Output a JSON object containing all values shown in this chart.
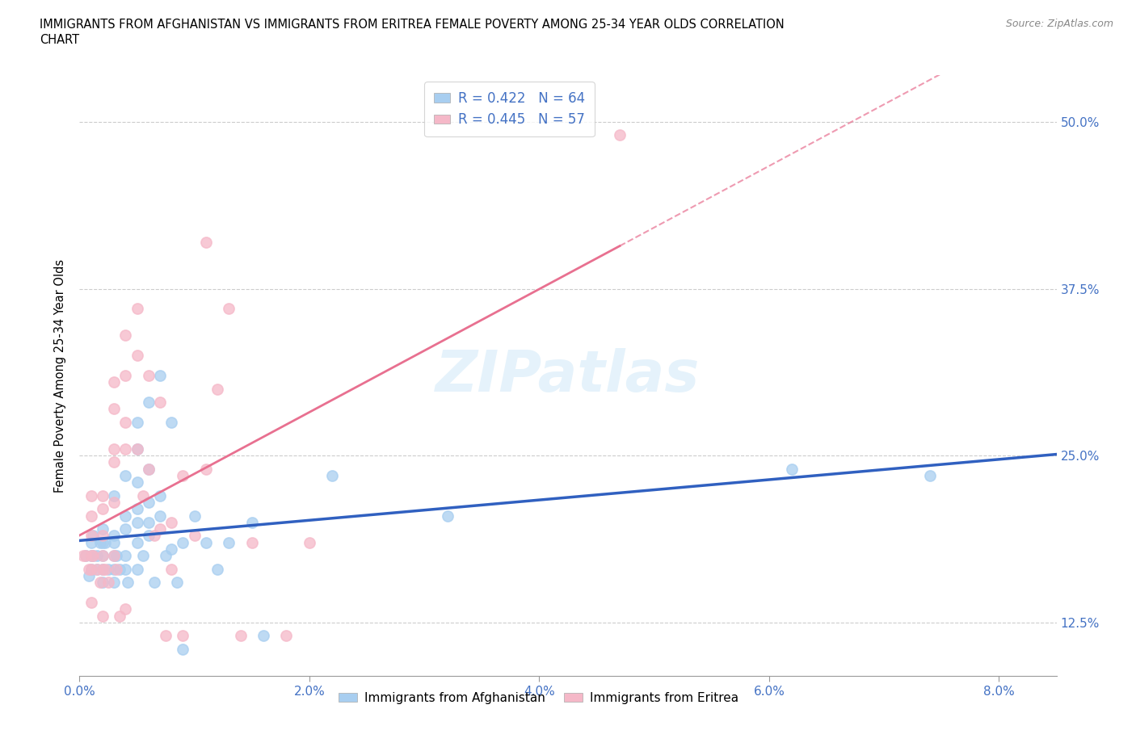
{
  "title_line1": "IMMIGRANTS FROM AFGHANISTAN VS IMMIGRANTS FROM ERITREA FEMALE POVERTY AMONG 25-34 YEAR OLDS CORRELATION",
  "title_line2": "CHART",
  "source": "Source: ZipAtlas.com",
  "ylabel": "Female Poverty Among 25-34 Year Olds",
  "xlim": [
    0.0,
    0.085
  ],
  "ylim": [
    0.085,
    0.535
  ],
  "afghanistan_color": "#a8cef0",
  "eritrea_color": "#f5b8c8",
  "afghanistan_R": 0.422,
  "afghanistan_N": 64,
  "eritrea_R": 0.445,
  "eritrea_N": 57,
  "afghanistan_line_color": "#3060c0",
  "eritrea_line_color": "#e87090",
  "watermark": "ZIPatlas",
  "x_tick_vals": [
    0.0,
    0.02,
    0.04,
    0.06,
    0.08
  ],
  "x_tick_labels": [
    "0.0%",
    "2.0%",
    "4.0%",
    "6.0%",
    "8.0%"
  ],
  "y_tick_vals": [
    0.125,
    0.25,
    0.375,
    0.5
  ],
  "y_tick_labels": [
    "12.5%",
    "25.0%",
    "37.5%",
    "50.0%"
  ],
  "afghanistan_x": [
    0.0005,
    0.0008,
    0.001,
    0.001,
    0.001,
    0.0012,
    0.0012,
    0.0015,
    0.0015,
    0.0018,
    0.002,
    0.002,
    0.002,
    0.002,
    0.002,
    0.0022,
    0.0025,
    0.003,
    0.003,
    0.003,
    0.003,
    0.003,
    0.003,
    0.0032,
    0.0035,
    0.004,
    0.004,
    0.004,
    0.004,
    0.004,
    0.0042,
    0.005,
    0.005,
    0.005,
    0.005,
    0.005,
    0.005,
    0.005,
    0.0055,
    0.006,
    0.006,
    0.006,
    0.006,
    0.006,
    0.0065,
    0.007,
    0.007,
    0.007,
    0.0075,
    0.008,
    0.008,
    0.0085,
    0.009,
    0.009,
    0.01,
    0.011,
    0.012,
    0.013,
    0.015,
    0.016,
    0.022,
    0.032,
    0.062,
    0.074
  ],
  "afghanistan_y": [
    0.175,
    0.16,
    0.185,
    0.175,
    0.165,
    0.19,
    0.175,
    0.175,
    0.165,
    0.185,
    0.195,
    0.185,
    0.175,
    0.165,
    0.155,
    0.185,
    0.165,
    0.22,
    0.19,
    0.185,
    0.175,
    0.165,
    0.155,
    0.175,
    0.165,
    0.235,
    0.205,
    0.195,
    0.175,
    0.165,
    0.155,
    0.275,
    0.255,
    0.23,
    0.21,
    0.2,
    0.185,
    0.165,
    0.175,
    0.29,
    0.24,
    0.215,
    0.2,
    0.19,
    0.155,
    0.31,
    0.22,
    0.205,
    0.175,
    0.275,
    0.18,
    0.155,
    0.185,
    0.105,
    0.205,
    0.185,
    0.165,
    0.185,
    0.2,
    0.115,
    0.235,
    0.205,
    0.24,
    0.235
  ],
  "eritrea_x": [
    0.0003,
    0.0005,
    0.0008,
    0.001,
    0.001,
    0.001,
    0.001,
    0.001,
    0.001,
    0.0012,
    0.0015,
    0.0018,
    0.002,
    0.002,
    0.002,
    0.002,
    0.002,
    0.002,
    0.0022,
    0.0025,
    0.003,
    0.003,
    0.003,
    0.003,
    0.003,
    0.003,
    0.0032,
    0.0035,
    0.004,
    0.004,
    0.004,
    0.004,
    0.004,
    0.005,
    0.005,
    0.005,
    0.0055,
    0.006,
    0.006,
    0.0065,
    0.007,
    0.007,
    0.0075,
    0.008,
    0.008,
    0.009,
    0.009,
    0.01,
    0.011,
    0.011,
    0.012,
    0.013,
    0.014,
    0.015,
    0.018,
    0.02,
    0.047
  ],
  "eritrea_y": [
    0.175,
    0.175,
    0.165,
    0.22,
    0.205,
    0.19,
    0.175,
    0.165,
    0.14,
    0.175,
    0.165,
    0.155,
    0.22,
    0.21,
    0.19,
    0.175,
    0.165,
    0.13,
    0.165,
    0.155,
    0.305,
    0.285,
    0.255,
    0.245,
    0.215,
    0.175,
    0.165,
    0.13,
    0.34,
    0.31,
    0.275,
    0.255,
    0.135,
    0.36,
    0.325,
    0.255,
    0.22,
    0.31,
    0.24,
    0.19,
    0.29,
    0.195,
    0.115,
    0.2,
    0.165,
    0.235,
    0.115,
    0.19,
    0.41,
    0.24,
    0.3,
    0.36,
    0.115,
    0.185,
    0.115,
    0.185,
    0.49
  ]
}
